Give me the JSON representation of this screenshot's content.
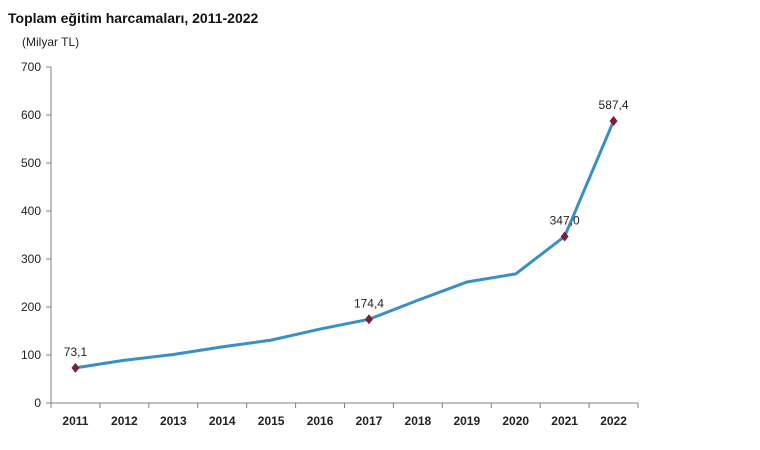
{
  "chart_data": {
    "type": "line",
    "title": "Toplam eğitim harcamaları, 2011-2022",
    "ylabel": "(Milyar TL)",
    "xlabel": "",
    "categories": [
      "2011",
      "2012",
      "2013",
      "2014",
      "2015",
      "2016",
      "2017",
      "2018",
      "2019",
      "2020",
      "2021",
      "2022"
    ],
    "series": [
      {
        "values": [
          73.1,
          89,
          101,
          117,
          131,
          154,
          174.4,
          214,
          252,
          269,
          347.0,
          587.4
        ]
      }
    ],
    "data_labels": [
      {
        "index": 0,
        "text": "73,1"
      },
      {
        "index": 6,
        "text": "174,4"
      },
      {
        "index": 10,
        "text": "347,0"
      },
      {
        "index": 11,
        "text": "587,4"
      }
    ],
    "ylim": [
      0,
      700
    ],
    "yticks": [
      0,
      100,
      200,
      300,
      400,
      500,
      600,
      700
    ],
    "grid": false,
    "legend": "none",
    "colors": {
      "line": "#3a8fc4",
      "marker": "#7a1f3d",
      "axis": "#808080"
    }
  }
}
